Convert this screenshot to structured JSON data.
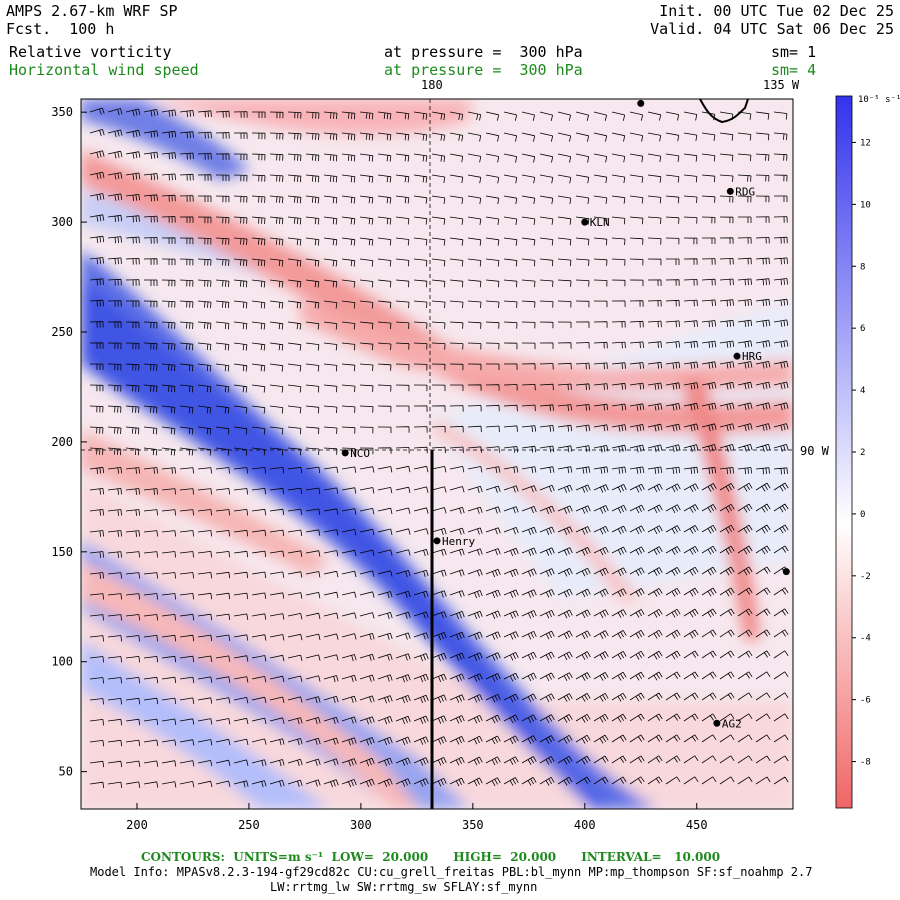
{
  "header": {
    "model_title": "AMPS 2.67-km WRF SP",
    "forecast": "Fcst.  100 h",
    "init": "Init. 00 UTC Tue 02 Dec 25",
    "valid": "Valid. 04 UTC Sat 06 Dec 25",
    "field1_name": "Relative vorticity",
    "field1_level": "at pressure =  300 hPa",
    "field1_sm": "sm= 1",
    "field2_name": "Horizontal wind speed",
    "field2_level": "at pressure =  300 hPa",
    "field2_sm": "sm= 4"
  },
  "map_labels": {
    "lon_180": "180",
    "lon_135w": "135 W",
    "lon_90w": "90 W"
  },
  "stations": [
    {
      "name": "RDG",
      "x": 465,
      "y": 314
    },
    {
      "name": "KLN",
      "x": 400,
      "y": 300
    },
    {
      "name": "HRG",
      "x": 468,
      "y": 239
    },
    {
      "name": "NCO",
      "x": 293,
      "y": 195
    },
    {
      "name": "Henry",
      "x": 334,
      "y": 155
    },
    {
      "name": "AG2",
      "x": 459,
      "y": 72
    },
    {
      "name": "",
      "x": 425,
      "y": 354
    },
    {
      "name": "",
      "x": 490,
      "y": 141
    }
  ],
  "axes": {
    "x_ticks": [
      200,
      250,
      300,
      350,
      400,
      450
    ],
    "y_ticks": [
      50,
      100,
      150,
      200,
      250,
      300,
      350
    ],
    "xlim": [
      175,
      493
    ],
    "ylim": [
      33,
      356
    ]
  },
  "colorbar": {
    "unit_label": "10⁻⁵ s⁻¹",
    "ticks": [
      12,
      10,
      8,
      6,
      4,
      2,
      0,
      -2,
      -4,
      -6,
      -8
    ],
    "min": -9.5,
    "max": 13.5,
    "positive_color": "#3333ee",
    "negative_color": "#ee4444"
  },
  "footer": {
    "contours": "CONTOURS:  UNITS=m s⁻¹  LOW=  20.000      HIGH=  20.000      INTERVAL=   10.000",
    "model_info": "Model Info: MPASv8.2.3-194-gf29cd82c CU:cu_grell_freitas PBL:bl_mynn MP:mp_thompson SF:sf_noahmp 2.7",
    "model_info2": "LW:rrtmg_lw SW:rrtmg_sw SFLAY:sf_mynn"
  }
}
